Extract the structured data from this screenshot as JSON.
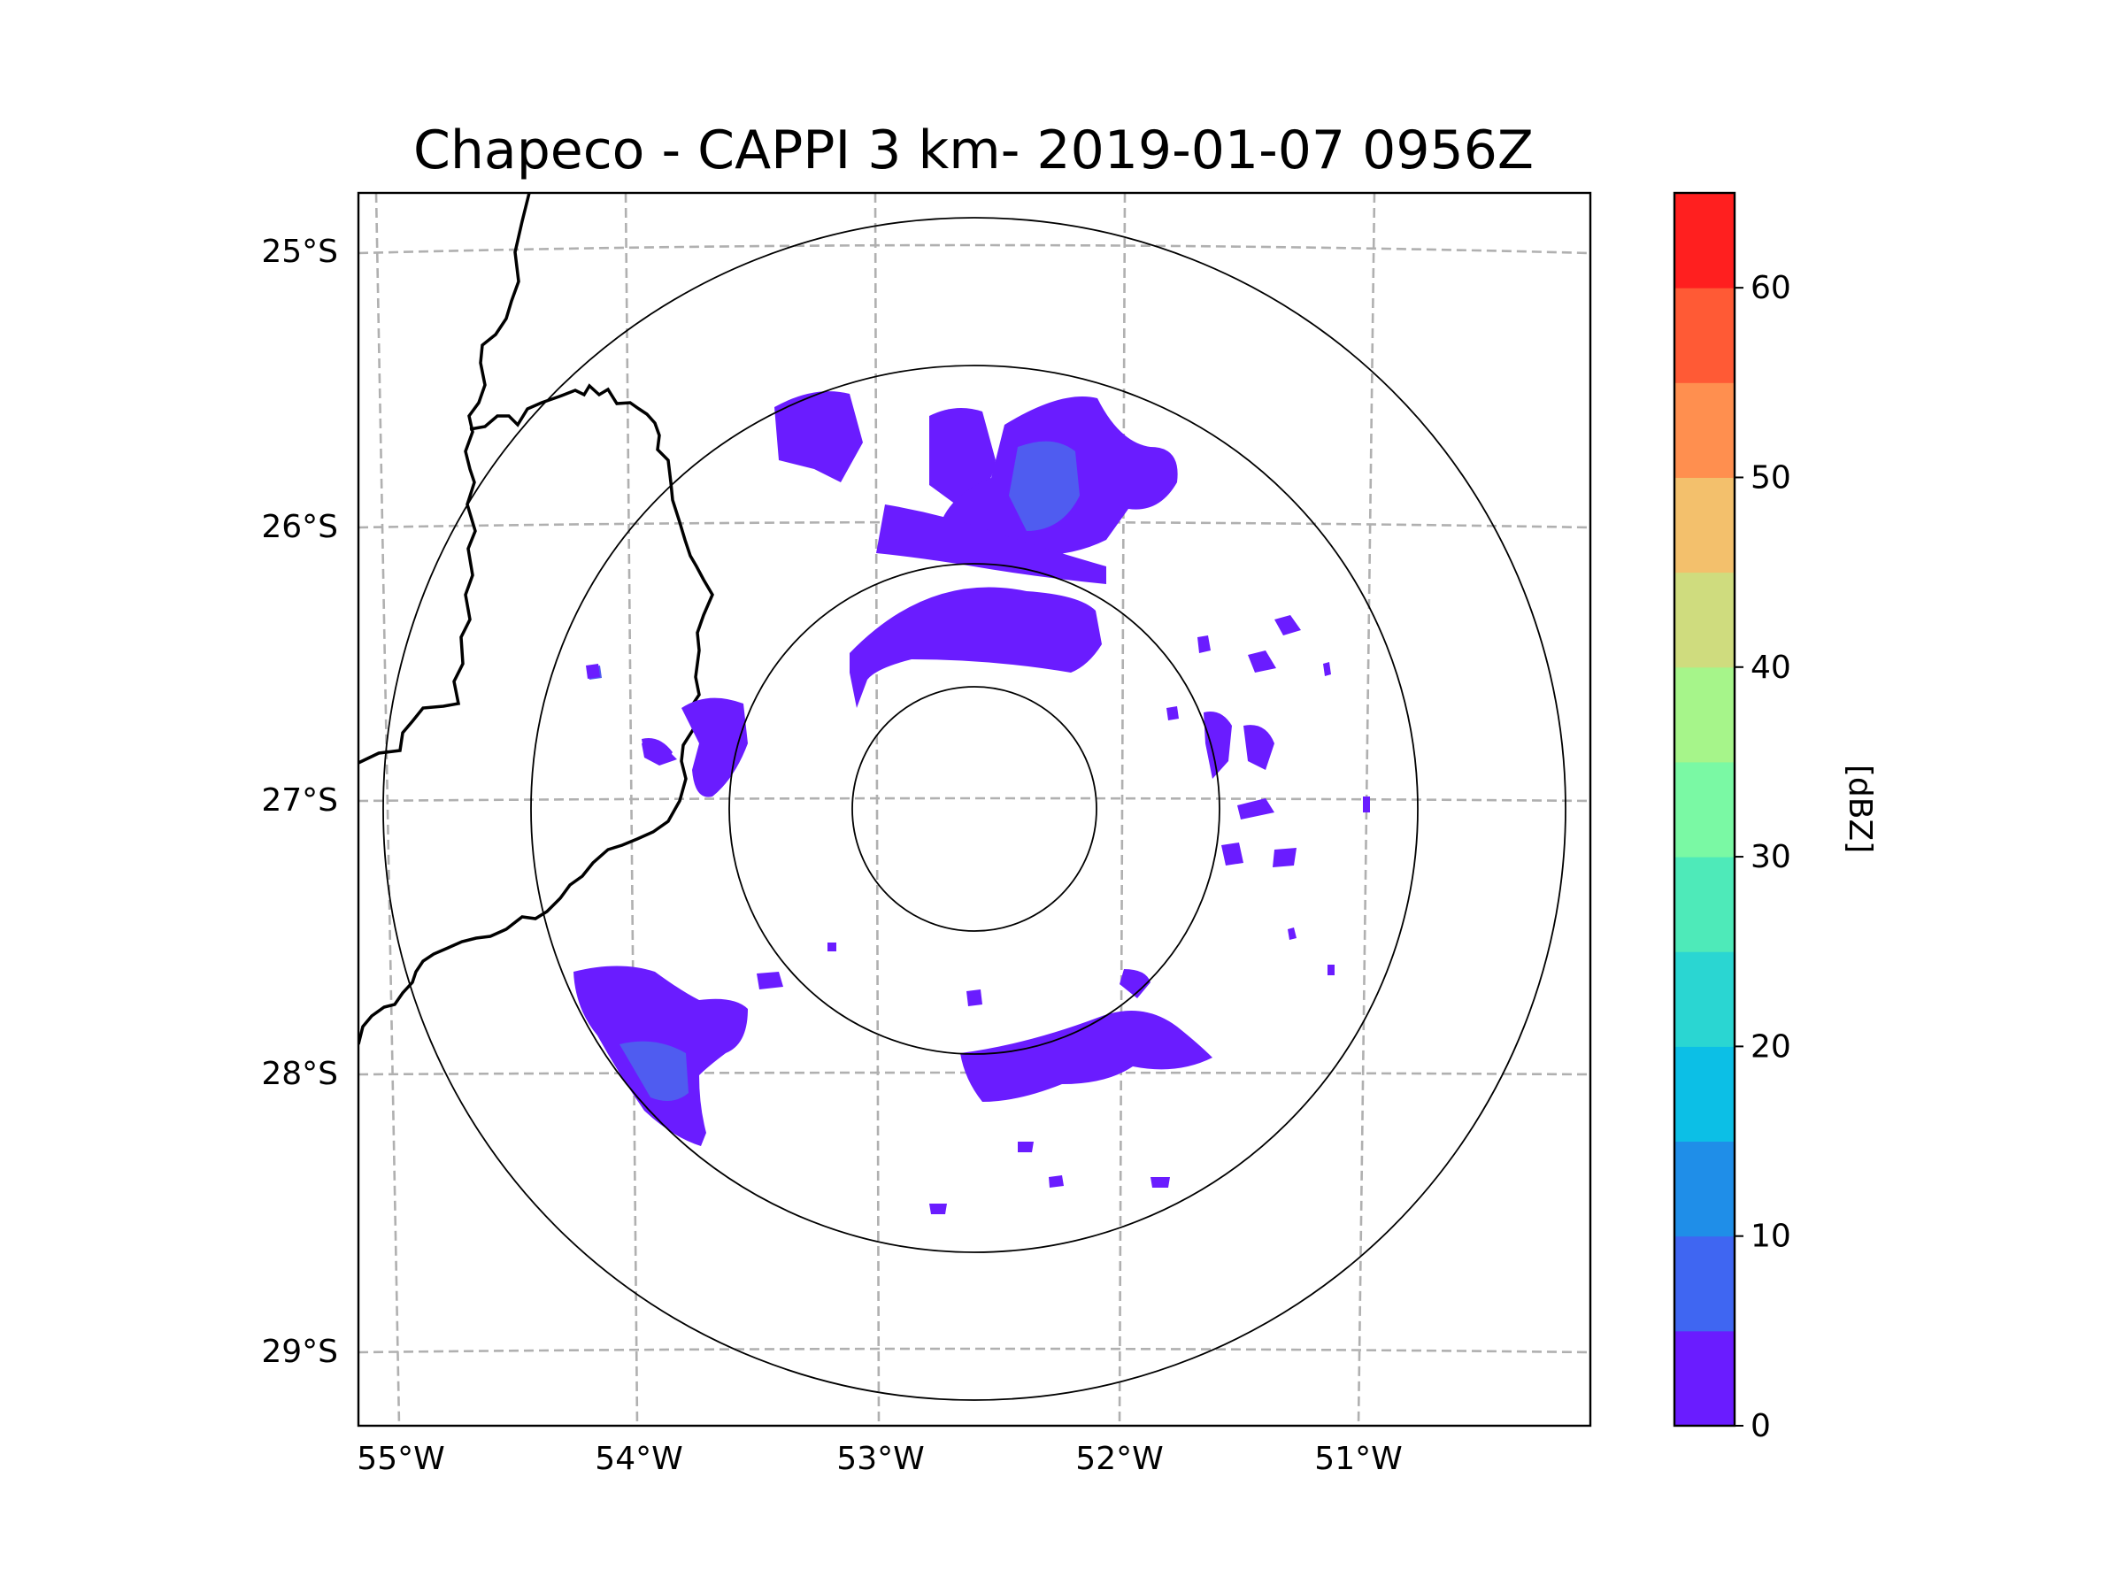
{
  "title": "Chapeco - CAPPI 3 km- 2019-01-07 0956Z",
  "map": {
    "lat_labels": [
      "25°S",
      "26°S",
      "27°S",
      "28°S",
      "29°S"
    ],
    "lon_labels": [
      "55°W",
      "54°W",
      "53°W",
      "52°W",
      "51°W"
    ],
    "radar_site": "Chapeco",
    "ring_count": 4
  },
  "colorbar": {
    "label": "[dBZ]",
    "ticks": [
      "0",
      "10",
      "20",
      "30",
      "40",
      "50",
      "60"
    ],
    "bins": [
      {
        "from": 0,
        "color": "#6a1cff"
      },
      {
        "from": 5,
        "color": "#3f66f2"
      },
      {
        "from": 10,
        "color": "#1f8ee8"
      },
      {
        "from": 15,
        "color": "#0cbfe6"
      },
      {
        "from": 20,
        "color": "#2ad6d2"
      },
      {
        "from": 25,
        "color": "#4eeab9"
      },
      {
        "from": 30,
        "color": "#7af9a4"
      },
      {
        "from": 35,
        "color": "#a6f58a"
      },
      {
        "from": 40,
        "color": "#cfdc7e"
      },
      {
        "from": 45,
        "color": "#f3c06c"
      },
      {
        "from": 50,
        "color": "#ff8f4f"
      },
      {
        "from": 55,
        "color": "#ff5a35"
      },
      {
        "from": 60,
        "color": "#ff1f1f"
      }
    ],
    "max": 65
  }
}
